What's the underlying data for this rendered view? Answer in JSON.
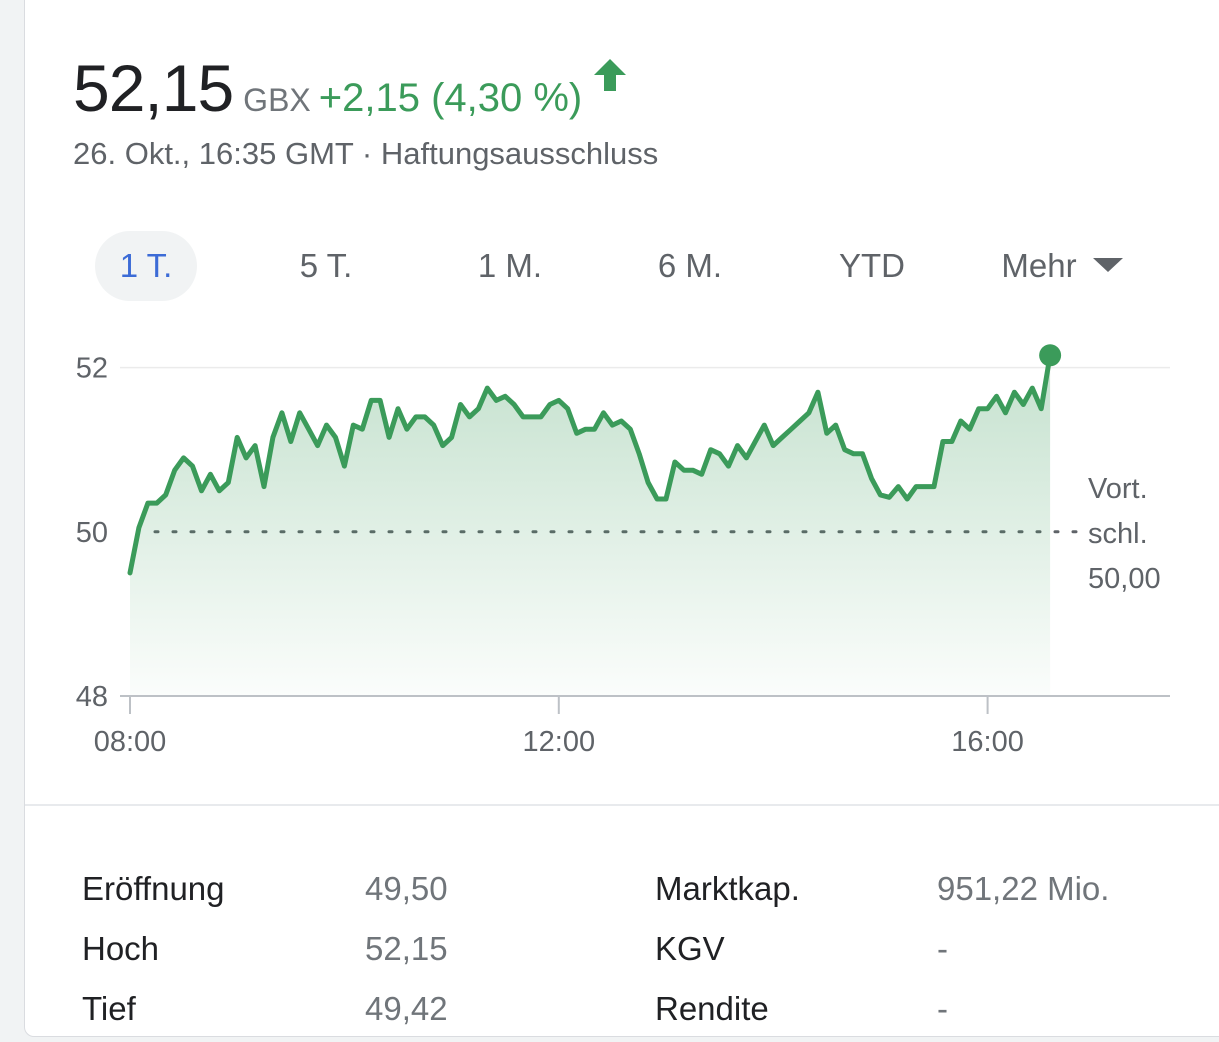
{
  "quote": {
    "price": "52,15",
    "currency": "GBX",
    "change": "+2,15 (4,30 %)",
    "timestamp": "26. Okt., 16:35 GMT",
    "separator": "·",
    "disclaimer": "Haftungsausschluss",
    "up_color": "#3b9b5a",
    "icon": "arrow-up-icon"
  },
  "tabs": [
    {
      "label": "1 T.",
      "active": true
    },
    {
      "label": "5 T.",
      "active": false
    },
    {
      "label": "1 M.",
      "active": false
    },
    {
      "label": "6 M.",
      "active": false
    },
    {
      "label": "YTD",
      "active": false
    },
    {
      "label": "Mehr",
      "active": false,
      "icon": "dropdown-triangle-icon"
    }
  ],
  "chart_data": {
    "type": "area",
    "x_ticks": [
      "08:00",
      "12:00",
      "16:00"
    ],
    "y_ticks": [
      48,
      50,
      52
    ],
    "ylim": [
      48,
      52.3
    ],
    "xlim_hours": [
      8,
      17
    ],
    "previous_close": 50.0,
    "previous_close_label": [
      "Vort.",
      "schl.",
      "50,00"
    ],
    "line_color": "#3b9b5a",
    "series": [
      {
        "x": [
          "08:00",
          "08:05",
          "08:10",
          "08:15",
          "08:20",
          "08:25",
          "08:30",
          "08:35",
          "08:40",
          "08:45",
          "08:50",
          "08:55",
          "09:00",
          "09:05",
          "09:10",
          "09:15",
          "09:20",
          "09:25",
          "09:30",
          "09:35",
          "09:40",
          "09:45",
          "09:50",
          "09:55",
          "10:00",
          "10:05",
          "10:10",
          "10:15",
          "10:20",
          "10:25",
          "10:30",
          "10:35",
          "10:40",
          "10:45",
          "10:50",
          "10:55",
          "11:00",
          "11:05",
          "11:10",
          "11:15",
          "11:20",
          "11:25",
          "11:30",
          "11:35",
          "11:40",
          "11:45",
          "11:50",
          "11:55",
          "12:00",
          "12:05",
          "12:10",
          "12:15",
          "12:20",
          "12:25",
          "12:30",
          "12:35",
          "12:40",
          "12:45",
          "12:50",
          "12:55",
          "13:00",
          "13:05",
          "13:10",
          "13:15",
          "13:20",
          "13:25",
          "13:30",
          "13:35",
          "13:40",
          "13:45",
          "13:50",
          "13:55",
          "14:00",
          "14:05",
          "14:10",
          "14:15",
          "14:20",
          "14:25",
          "14:30",
          "14:35",
          "14:40",
          "14:45",
          "14:50",
          "14:55",
          "15:00",
          "15:05",
          "15:10",
          "15:15",
          "15:20",
          "15:25",
          "15:30",
          "15:35",
          "15:40",
          "15:45",
          "15:50",
          "15:55",
          "16:00",
          "16:05",
          "16:10",
          "16:15",
          "16:20",
          "16:25",
          "16:30",
          "16:35"
        ],
        "y": [
          49.5,
          50.05,
          50.35,
          50.35,
          50.45,
          50.75,
          50.9,
          50.8,
          50.5,
          50.7,
          50.5,
          50.6,
          51.15,
          50.9,
          51.05,
          50.55,
          51.15,
          51.45,
          51.1,
          51.45,
          51.25,
          51.05,
          51.3,
          51.15,
          50.8,
          51.3,
          51.25,
          51.6,
          51.6,
          51.15,
          51.5,
          51.25,
          51.4,
          51.4,
          51.3,
          51.05,
          51.15,
          51.55,
          51.4,
          51.5,
          51.75,
          51.6,
          51.65,
          51.55,
          51.4,
          51.4,
          51.4,
          51.55,
          51.6,
          51.5,
          51.2,
          51.25,
          51.25,
          51.45,
          51.3,
          51.35,
          51.25,
          50.95,
          50.6,
          50.4,
          50.4,
          50.85,
          50.75,
          50.75,
          50.7,
          51.0,
          50.95,
          50.8,
          51.05,
          50.9,
          51.1,
          51.3,
          51.05,
          51.15,
          51.25,
          51.35,
          51.45,
          51.7,
          51.2,
          51.3,
          51.0,
          50.95,
          50.95,
          50.65,
          50.45,
          50.42,
          50.55,
          50.4,
          50.55,
          50.55,
          50.55,
          51.1,
          51.1,
          51.35,
          51.25,
          51.5,
          51.5,
          51.65,
          51.45,
          51.7,
          51.55,
          51.75,
          51.5,
          52.15
        ]
      }
    ]
  },
  "stats": [
    {
      "label": "Eröffnung",
      "value": "49,50"
    },
    {
      "label": "Hoch",
      "value": "52,15"
    },
    {
      "label": "Tief",
      "value": "49,42"
    },
    {
      "label": "Marktkap.",
      "value": "951,22 Mio."
    },
    {
      "label": "KGV",
      "value": "-"
    },
    {
      "label": "Rendite",
      "value": "-"
    }
  ]
}
